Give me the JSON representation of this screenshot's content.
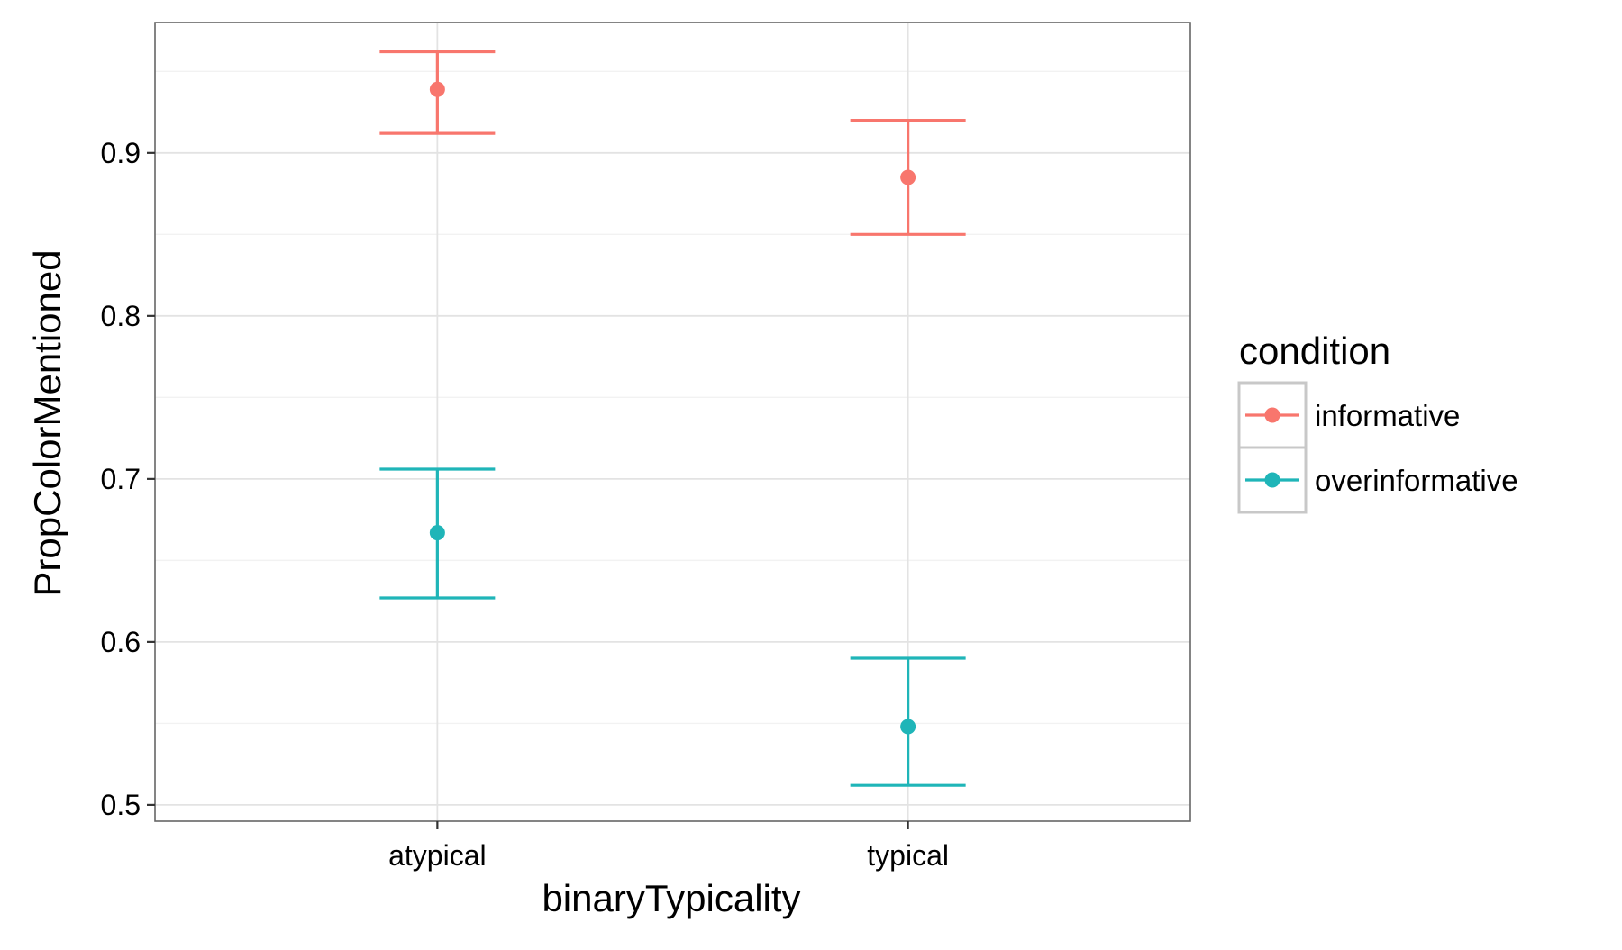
{
  "chart_data": {
    "type": "scatter",
    "title": "",
    "xlabel": "binaryTypicality",
    "ylabel": "PropColorMentioned",
    "categories": [
      "atypical",
      "typical"
    ],
    "ylim": [
      0.49,
      0.98
    ],
    "yticks": [
      0.5,
      0.6,
      0.7,
      0.8,
      0.9
    ],
    "ytick_labels": [
      "0.5",
      "0.6",
      "0.7",
      "0.8",
      "0.9"
    ],
    "grid": true,
    "legend": {
      "title": "condition",
      "placement": "right"
    },
    "series": [
      {
        "name": "informative",
        "color": "#F8766D",
        "values": [
          0.939,
          0.885
        ],
        "lower": [
          0.912,
          0.85
        ],
        "upper": [
          0.962,
          0.92
        ]
      },
      {
        "name": "overinformative",
        "color": "#1FB5B8",
        "values": [
          0.667,
          0.548
        ],
        "lower": [
          0.627,
          0.512
        ],
        "upper": [
          0.706,
          0.59
        ]
      }
    ]
  }
}
